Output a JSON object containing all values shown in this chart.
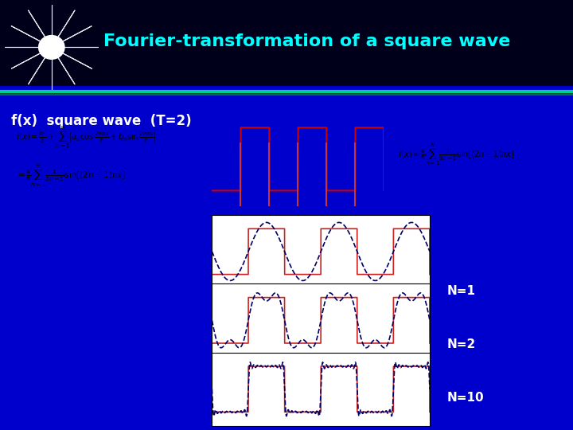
{
  "title": "Fourier-transformation of a square wave",
  "subtitle": "f(x)  square wave  (T=2)",
  "bg_color": "#0000cc",
  "header_bg": "#000033",
  "title_color": "#00ffff",
  "subtitle_color": "#ffffff",
  "label_color": "#ffffff",
  "n_values": [
    1,
    2,
    10
  ],
  "n_labels": [
    "N=1",
    "N=2",
    "N=10"
  ],
  "x_range": [
    -3,
    3
  ],
  "num_points": 2000
}
